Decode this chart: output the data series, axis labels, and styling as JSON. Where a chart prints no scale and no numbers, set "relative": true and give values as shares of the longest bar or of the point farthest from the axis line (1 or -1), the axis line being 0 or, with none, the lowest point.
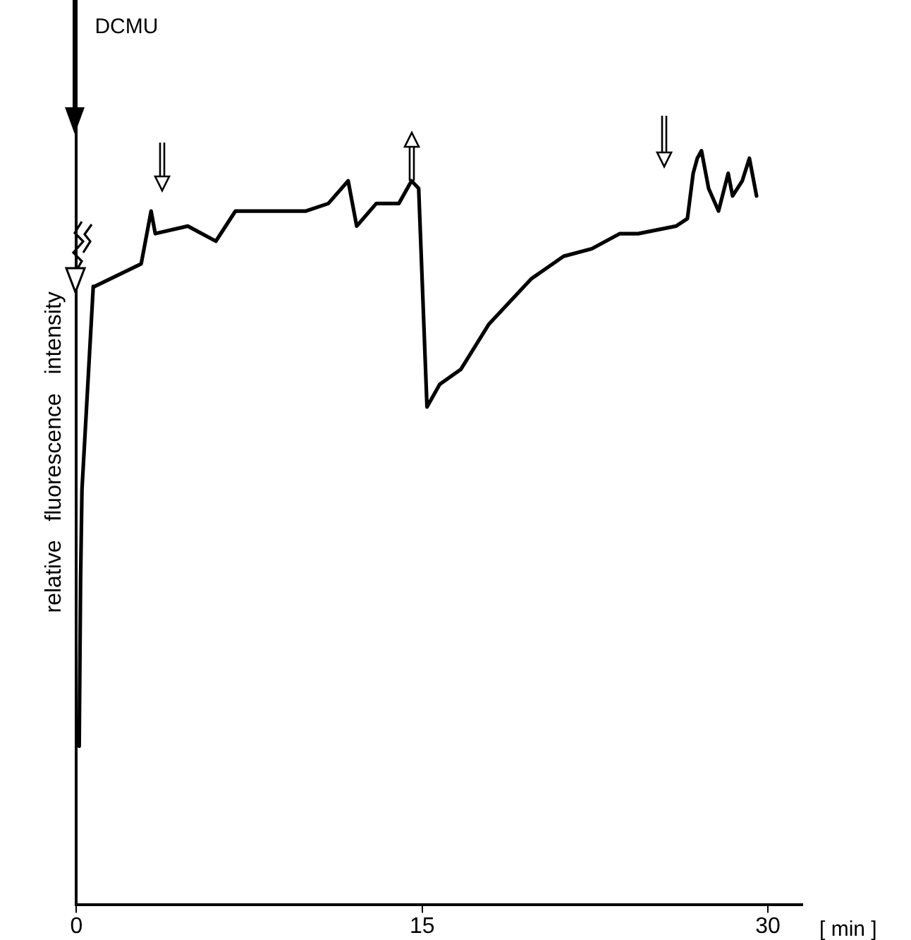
{
  "chart_data": {
    "type": "line",
    "relative": true,
    "ylabel": "relative   fluorescence   intensity",
    "xlabel": "[ min ]",
    "xlim": [
      0,
      31.5
    ],
    "xticks": [
      0,
      15,
      30
    ],
    "grid": false,
    "legend": false,
    "marker": "none",
    "line_style": "solid",
    "annotations": [
      "DCMU"
    ],
    "series": [
      {
        "color": "#000000",
        "x": [
          0.12,
          0.18,
          0.24,
          0.73,
          0.79,
          2.81,
          3.24,
          3.42,
          4.83,
          6.05,
          6.9,
          7.7,
          8.92,
          9.96,
          10.93,
          11.79,
          12.16,
          13.01,
          13.99,
          14.54,
          14.85,
          15.21,
          15.76,
          16.68,
          17.9,
          19.73,
          21.14,
          22.36,
          23.58,
          24.37,
          26.02,
          26.51,
          26.76,
          26.94,
          27.12,
          27.43,
          27.86,
          28.28,
          28.47,
          28.89,
          29.2,
          29.51
        ],
        "values": [
          0.21,
          0.43,
          0.55,
          0.82,
          0.82,
          0.85,
          0.92,
          0.89,
          0.9,
          0.88,
          0.92,
          0.92,
          0.92,
          0.92,
          0.93,
          0.96,
          0.9,
          0.93,
          0.93,
          0.96,
          0.95,
          0.66,
          0.69,
          0.71,
          0.77,
          0.83,
          0.86,
          0.87,
          0.89,
          0.89,
          0.9,
          0.91,
          0.97,
          0.99,
          1,
          0.95,
          0.92,
          0.97,
          0.94,
          0.96,
          0.99,
          0.94
        ]
      }
    ]
  }
}
